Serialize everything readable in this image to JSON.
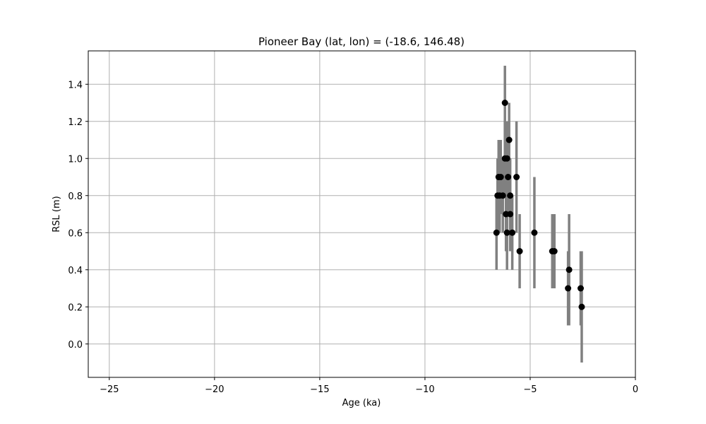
{
  "chart_data": {
    "type": "scatter",
    "title": "Pioneer Bay (lat, lon) = (-18.6, 146.48)",
    "xlabel": "Age (ka)",
    "ylabel": "RSL (m)",
    "xlim": [
      -26,
      0
    ],
    "ylim": [
      -0.18,
      1.58
    ],
    "xticks": [
      -25,
      -20,
      -15,
      -10,
      -5,
      0
    ],
    "xtick_labels": [
      "−25",
      "−20",
      "−15",
      "−10",
      "−5",
      "0"
    ],
    "yticks": [
      0.0,
      0.2,
      0.4,
      0.6,
      0.8,
      1.0,
      1.2,
      1.4
    ],
    "ytick_labels": [
      "0.0",
      "0.2",
      "0.4",
      "0.6",
      "0.8",
      "1.0",
      "1.2",
      "1.4"
    ],
    "grid": true,
    "marker_color": "#000000",
    "errorbar_color": "#808080",
    "points": [
      {
        "x": -6.6,
        "y": 0.6,
        "err": 0.2
      },
      {
        "x": -6.55,
        "y": 0.8,
        "err": 0.2
      },
      {
        "x": -6.5,
        "y": 0.9,
        "err": 0.2
      },
      {
        "x": -6.45,
        "y": 0.8,
        "err": 0.2
      },
      {
        "x": -6.4,
        "y": 0.9,
        "err": 0.2
      },
      {
        "x": -6.3,
        "y": 0.8,
        "err": 0.2
      },
      {
        "x": -6.2,
        "y": 1.0,
        "err": 0.2
      },
      {
        "x": -6.2,
        "y": 1.3,
        "err": 0.2
      },
      {
        "x": -6.15,
        "y": 0.7,
        "err": 0.2
      },
      {
        "x": -6.1,
        "y": 0.6,
        "err": 0.2
      },
      {
        "x": -6.1,
        "y": 1.0,
        "err": 0.2
      },
      {
        "x": -6.05,
        "y": 0.9,
        "err": 0.2
      },
      {
        "x": -6.0,
        "y": 1.1,
        "err": 0.2
      },
      {
        "x": -5.95,
        "y": 0.7,
        "err": 0.2
      },
      {
        "x": -5.95,
        "y": 0.8,
        "err": 0.2
      },
      {
        "x": -5.85,
        "y": 0.6,
        "err": 0.2
      },
      {
        "x": -5.65,
        "y": 0.9,
        "err": 0.3
      },
      {
        "x": -5.5,
        "y": 0.5,
        "err": 0.2
      },
      {
        "x": -4.8,
        "y": 0.6,
        "err": 0.3
      },
      {
        "x": -3.95,
        "y": 0.5,
        "err": 0.2
      },
      {
        "x": -3.85,
        "y": 0.5,
        "err": 0.2
      },
      {
        "x": -3.2,
        "y": 0.3,
        "err": 0.2
      },
      {
        "x": -3.15,
        "y": 0.4,
        "err": 0.3
      },
      {
        "x": -2.6,
        "y": 0.3,
        "err": 0.2
      },
      {
        "x": -2.55,
        "y": 0.2,
        "err": 0.3
      }
    ]
  }
}
